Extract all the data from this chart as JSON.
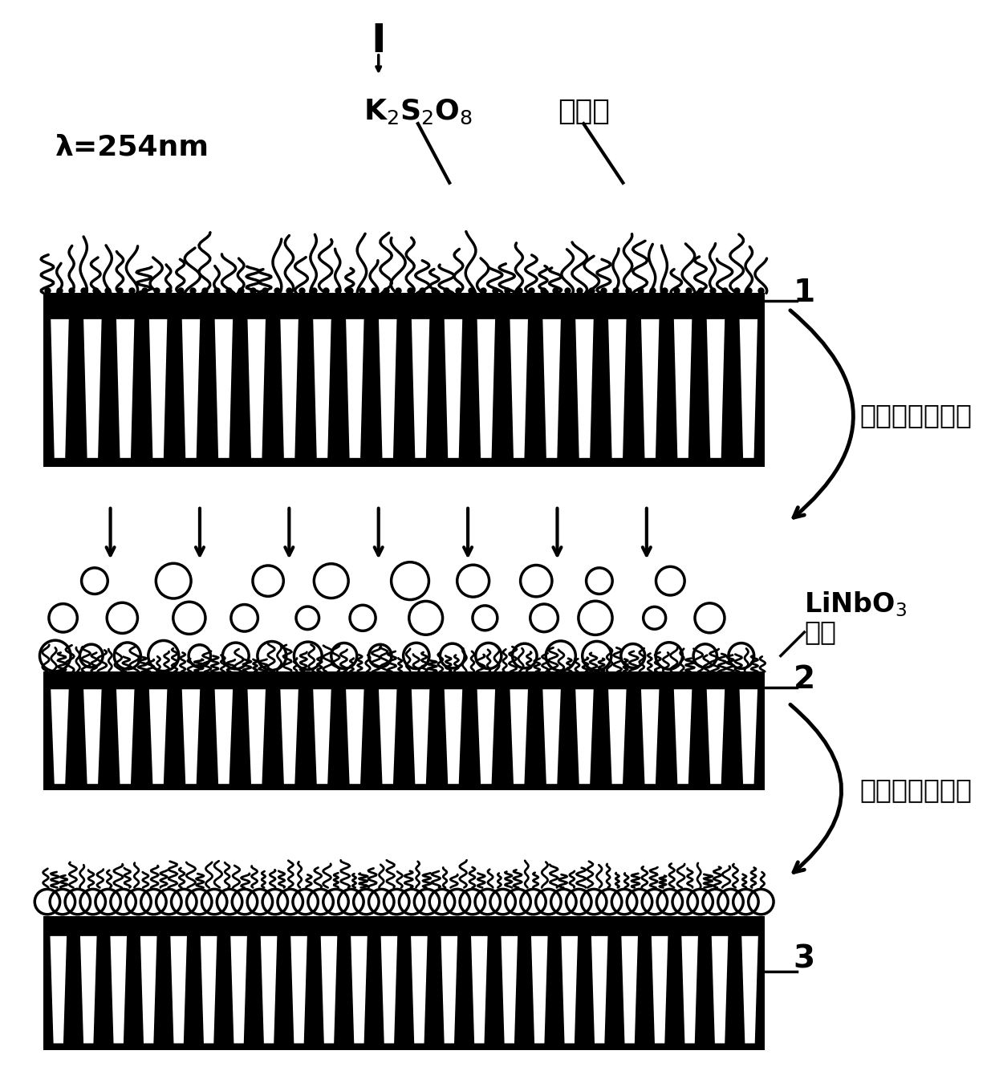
{
  "bg_color": "#ffffff",
  "black": "#000000",
  "white": "#ffffff",
  "fig_width": 12.4,
  "fig_height": 13.5,
  "label_I": "I",
  "label_K2S2O8": "K$_2$S$_2$O$_8$",
  "label_bingxisuan": "丙烯酸",
  "label_lambda": "λ=254nm",
  "label_1": "1",
  "label_2": "2",
  "label_3": "3",
  "label_process1": "膜表面接枝过程",
  "label_process2": "膜表面涂覆过程",
  "label_LiNbO3": "LiNbO$_3$",
  "label_jiaoli": "胶粒"
}
